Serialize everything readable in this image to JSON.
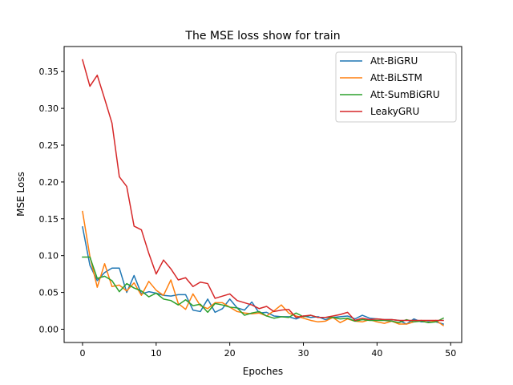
{
  "chart_data": {
    "type": "line",
    "title": "The MSE loss show for train",
    "xlabel": "Epoches",
    "ylabel": "MSE Loss",
    "xlim": [
      -2.5,
      51.5
    ],
    "ylim": [
      -0.018,
      0.384
    ],
    "xticks": [
      0,
      10,
      20,
      30,
      40,
      50
    ],
    "yticks": [
      0.0,
      0.05,
      0.1,
      0.15,
      0.2,
      0.25,
      0.3,
      0.35
    ],
    "ytick_labels": [
      "0.00",
      "0.05",
      "0.10",
      "0.15",
      "0.20",
      "0.25",
      "0.30",
      "0.35"
    ],
    "legend_position": "upper-right",
    "x": [
      0,
      1,
      2,
      3,
      4,
      5,
      6,
      7,
      8,
      9,
      10,
      11,
      12,
      13,
      14,
      15,
      16,
      17,
      18,
      19,
      20,
      21,
      22,
      23,
      24,
      25,
      26,
      27,
      28,
      29,
      30,
      31,
      32,
      33,
      34,
      35,
      36,
      37,
      38,
      39,
      40,
      41,
      42,
      43,
      44,
      45,
      46,
      47,
      48,
      49
    ],
    "series": [
      {
        "name": "Att-BiGRU",
        "color": "#1f77b4",
        "values": [
          0.139,
          0.087,
          0.066,
          0.077,
          0.083,
          0.083,
          0.05,
          0.073,
          0.048,
          0.051,
          0.049,
          0.046,
          0.045,
          0.047,
          0.047,
          0.026,
          0.024,
          0.041,
          0.023,
          0.028,
          0.041,
          0.029,
          0.026,
          0.037,
          0.022,
          0.023,
          0.018,
          0.017,
          0.017,
          0.014,
          0.018,
          0.016,
          0.017,
          0.013,
          0.016,
          0.017,
          0.018,
          0.014,
          0.019,
          0.015,
          0.014,
          0.013,
          0.013,
          0.012,
          0.007,
          0.014,
          0.01,
          0.01,
          0.01,
          0.007
        ]
      },
      {
        "name": "Att-BiLSTM",
        "color": "#ff7f0e",
        "values": [
          0.16,
          0.099,
          0.057,
          0.089,
          0.058,
          0.06,
          0.052,
          0.063,
          0.046,
          0.065,
          0.053,
          0.046,
          0.067,
          0.035,
          0.027,
          0.048,
          0.032,
          0.028,
          0.036,
          0.036,
          0.03,
          0.024,
          0.022,
          0.021,
          0.022,
          0.018,
          0.025,
          0.033,
          0.022,
          0.018,
          0.015,
          0.012,
          0.01,
          0.011,
          0.016,
          0.009,
          0.014,
          0.011,
          0.01,
          0.013,
          0.01,
          0.008,
          0.011,
          0.007,
          0.007,
          0.01,
          0.012,
          0.009,
          0.012,
          0.005
        ]
      },
      {
        "name": "Att-SumBiGRU",
        "color": "#2ca02c",
        "values": [
          0.098,
          0.098,
          0.069,
          0.072,
          0.066,
          0.051,
          0.062,
          0.056,
          0.052,
          0.044,
          0.049,
          0.041,
          0.039,
          0.033,
          0.04,
          0.032,
          0.034,
          0.023,
          0.035,
          0.033,
          0.03,
          0.029,
          0.019,
          0.022,
          0.024,
          0.018,
          0.015,
          0.017,
          0.016,
          0.022,
          0.017,
          0.019,
          0.016,
          0.016,
          0.016,
          0.014,
          0.015,
          0.011,
          0.013,
          0.012,
          0.012,
          0.012,
          0.011,
          0.009,
          0.013,
          0.01,
          0.011,
          0.009,
          0.01,
          0.015
        ]
      },
      {
        "name": "LeakyGRU",
        "color": "#d62728",
        "values": [
          0.366,
          0.33,
          0.345,
          0.313,
          0.28,
          0.207,
          0.194,
          0.14,
          0.135,
          0.103,
          0.075,
          0.094,
          0.082,
          0.067,
          0.07,
          0.058,
          0.064,
          0.062,
          0.042,
          0.045,
          0.048,
          0.039,
          0.036,
          0.033,
          0.028,
          0.031,
          0.024,
          0.026,
          0.027,
          0.016,
          0.018,
          0.019,
          0.016,
          0.016,
          0.018,
          0.02,
          0.023,
          0.012,
          0.015,
          0.013,
          0.014,
          0.013,
          0.013,
          0.012,
          0.012,
          0.012,
          0.012,
          0.012,
          0.012,
          0.012
        ]
      }
    ]
  }
}
